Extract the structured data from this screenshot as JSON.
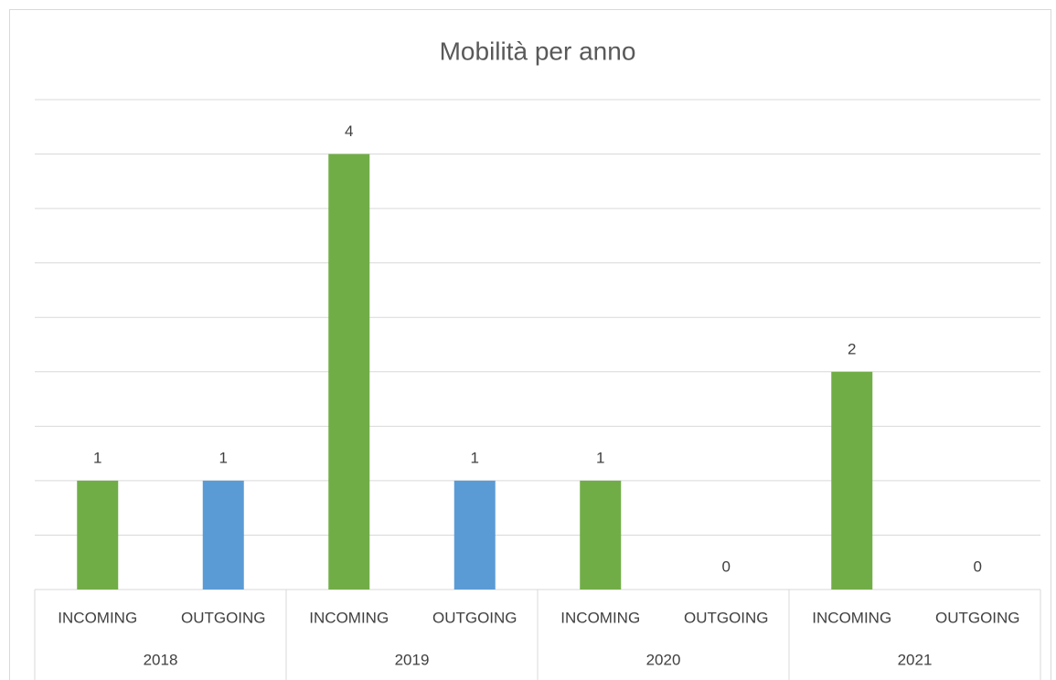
{
  "chart_data": {
    "type": "bar",
    "title": "Mobilità per anno",
    "categories": [
      "INCOMING",
      "OUTGOING",
      "INCOMING",
      "OUTGOING",
      "INCOMING",
      "OUTGOING",
      "INCOMING",
      "OUTGOING"
    ],
    "groups": [
      "2018",
      "2019",
      "2020",
      "2021"
    ],
    "values": [
      1,
      1,
      4,
      1,
      1,
      0,
      2,
      0
    ],
    "colors": [
      "#70ad47",
      "#5b9bd5",
      "#70ad47",
      "#5b9bd5",
      "#70ad47",
      "#5b9bd5",
      "#70ad47",
      "#5b9bd5"
    ],
    "ylim": [
      0,
      4.5
    ],
    "yticks": [
      0,
      0.5,
      1,
      1.5,
      2,
      2.5,
      3,
      3.5,
      4,
      4.5
    ],
    "grid": true
  }
}
